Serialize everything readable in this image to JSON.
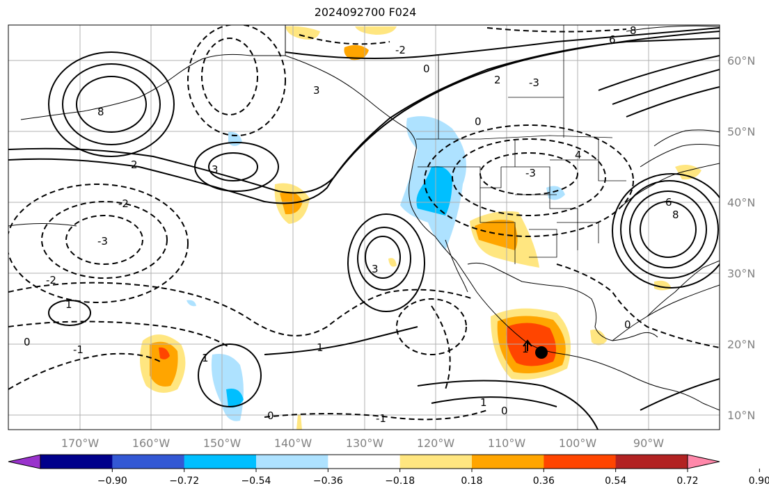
{
  "title": "2024092700 F024",
  "map": {
    "lat_labels": [
      "60°N",
      "50°N",
      "40°N",
      "30°N",
      "20°N",
      "10°N"
    ],
    "lon_labels": [
      "170°W",
      "160°W",
      "150°W",
      "140°W",
      "130°W",
      "120°W",
      "110°W",
      "100°W",
      "90°W"
    ],
    "contour_labels": [
      "-3",
      "-2",
      "-1",
      "0",
      "1",
      "2",
      "3",
      "4",
      "6",
      "8"
    ],
    "center_marker": "filled-circle"
  },
  "colorbar": {
    "ticks": [
      "−0.90",
      "−0.72",
      "−0.54",
      "−0.36",
      "−0.18",
      "0.18",
      "0.36",
      "0.54",
      "0.72",
      "0.90"
    ],
    "colors": [
      "#9932cc",
      "#00008b",
      "#3358d4",
      "#00bfff",
      "#aee2ff",
      "#ffffff",
      "#ffe680",
      "#ffa500",
      "#ff4500",
      "#b22222",
      "#ff88aa"
    ]
  }
}
